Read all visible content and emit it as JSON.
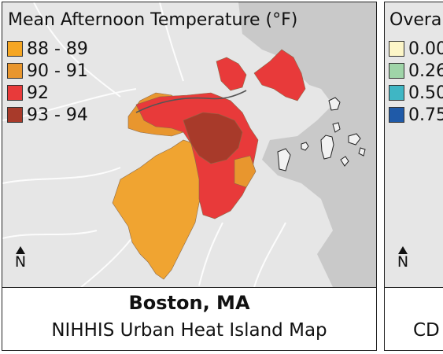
{
  "left_panel": {
    "legend": {
      "title": "Mean Afternoon Temperature (°F)",
      "items": [
        {
          "label": "88 - 89",
          "color": "#f5a623"
        },
        {
          "label": "90 - 91",
          "color": "#e8962e"
        },
        {
          "label": "92",
          "color": "#e83a3a"
        },
        {
          "label": "93 - 94",
          "color": "#a83a2a"
        }
      ]
    },
    "north_label": "N",
    "caption_city": "Boston, MA",
    "caption_subtitle": "NIHHIS Urban Heat Island Map"
  },
  "right_panel": {
    "legend": {
      "title": "Overa",
      "items": [
        {
          "label": "0.00",
          "color": "#fdf6c8"
        },
        {
          "label": "0.26",
          "color": "#9fd4a8"
        },
        {
          "label": "0.50",
          "color": "#3fb6c4"
        },
        {
          "label": "0.75",
          "color": "#1f5aa8"
        }
      ]
    },
    "north_label": "N",
    "caption_partial": "CD"
  },
  "map_colors": {
    "land": "#e6e6e6",
    "water": "#c9c9c9",
    "roads": "#ffffff",
    "tract_border": "#8a6a4a"
  }
}
